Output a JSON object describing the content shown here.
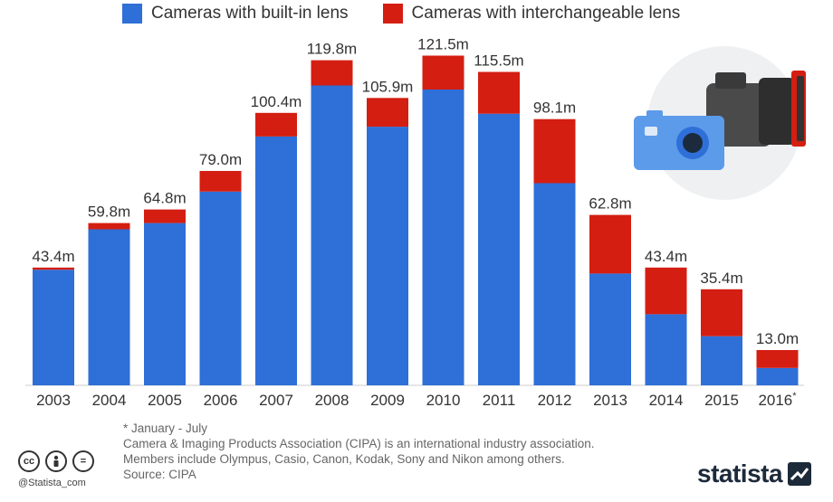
{
  "legend": [
    {
      "label": "Cameras with built-in lens",
      "color": "#2f6fd8"
    },
    {
      "label": "Cameras with interchangeable lens",
      "color": "#d41e12"
    }
  ],
  "chart_data": {
    "type": "bar",
    "stacked": true,
    "categories": [
      "2003",
      "2004",
      "2005",
      "2006",
      "2007",
      "2008",
      "2009",
      "2010",
      "2011",
      "2012",
      "2013",
      "2014",
      "2015",
      "2016*"
    ],
    "series": [
      {
        "name": "Cameras with built-in lens",
        "color": "#2f6fd8",
        "values": [
          42.6,
          57.5,
          59.8,
          71.4,
          91.7,
          110.5,
          95.3,
          109.0,
          100.1,
          74.5,
          41.2,
          26.2,
          18.1,
          6.4
        ]
      },
      {
        "name": "Cameras with interchangeable lens",
        "color": "#d41e12",
        "values": [
          0.8,
          2.3,
          5.0,
          7.6,
          8.7,
          9.3,
          10.6,
          12.5,
          15.4,
          23.6,
          21.6,
          17.2,
          17.3,
          6.6
        ]
      }
    ],
    "totals": [
      "43.4m",
      "59.8m",
      "64.8m",
      "79.0m",
      "100.4m",
      "119.8m",
      "105.9m",
      "121.5m",
      "115.5m",
      "98.1m",
      "62.8m",
      "43.4m",
      "35.4m",
      "13.0m"
    ],
    "ylim": [
      0,
      130
    ],
    "grid": false
  },
  "footer": {
    "note": "* January - July",
    "line1": "Camera & Imaging Products Association (CIPA) is an international industry association.",
    "line2": "Members include Olympus, Casio, Canon, Kodak, Sony and Nikon among others.",
    "source": "Source: CIPA",
    "handle": "@Statista_com",
    "brand": "statista",
    "cc_icons": [
      "cc",
      "person",
      "="
    ]
  }
}
